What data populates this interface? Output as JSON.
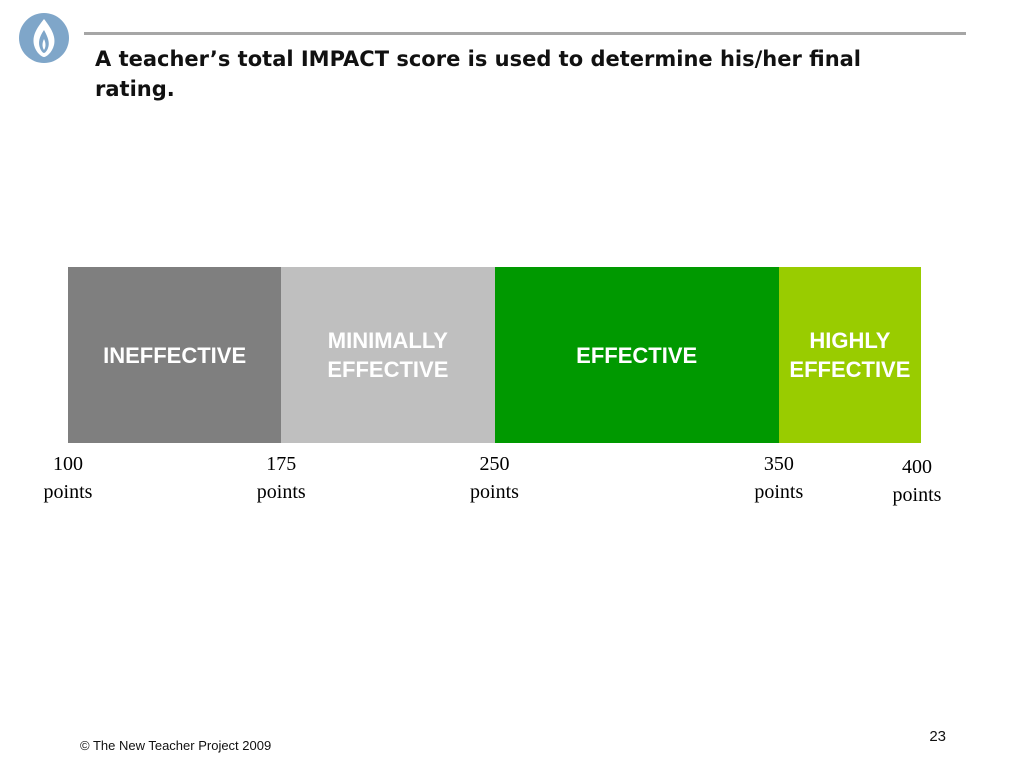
{
  "header": {
    "title": "A teacher’s total IMPACT score is used to determine his/her final rating."
  },
  "logo": {
    "icon": "flame-icon",
    "color": "#7fa6c9"
  },
  "rating_scale": {
    "segments": [
      {
        "label": "INEFFECTIVE",
        "from": 100,
        "to": 175,
        "color": "#7f7f7f"
      },
      {
        "label": "MINIMALLY\nEFFECTIVE",
        "from": 175,
        "to": 250,
        "color": "#bfbfbf"
      },
      {
        "label": "EFFECTIVE",
        "from": 250,
        "to": 350,
        "color": "#009900"
      },
      {
        "label": "HIGHLY\nEFFECTIVE",
        "from": 350,
        "to": 400,
        "color": "#99cc00"
      }
    ],
    "ticks": [
      {
        "value": 100,
        "label": "100\npoints"
      },
      {
        "value": 175,
        "label": "175\npoints"
      },
      {
        "value": 250,
        "label": "250\npoints"
      },
      {
        "value": 350,
        "label": "350\npoints"
      },
      {
        "value": 400,
        "label": "400\npoints"
      }
    ]
  },
  "footer": {
    "copyright": "© The New Teacher Project 2009",
    "page_number": "23"
  }
}
